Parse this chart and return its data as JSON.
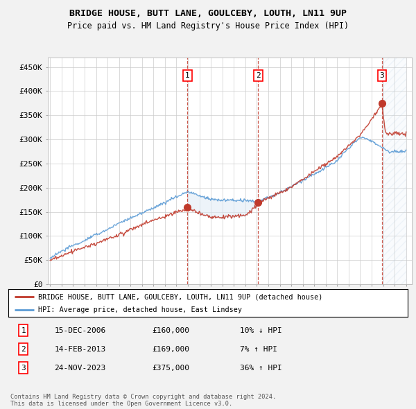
{
  "title": "BRIDGE HOUSE, BUTT LANE, GOULCEBY, LOUTH, LN11 9UP",
  "subtitle": "Price paid vs. HM Land Registry's House Price Index (HPI)",
  "ylabel_ticks": [
    "£0",
    "£50K",
    "£100K",
    "£150K",
    "£200K",
    "£250K",
    "£300K",
    "£350K",
    "£400K",
    "£450K"
  ],
  "ytick_values": [
    0,
    50000,
    100000,
    150000,
    200000,
    250000,
    300000,
    350000,
    400000,
    450000
  ],
  "ylim": [
    0,
    470000
  ],
  "xlim_start": 1994.8,
  "xlim_end": 2026.5,
  "sale_dates": [
    2006.96,
    2013.12,
    2023.9
  ],
  "sale_prices": [
    160000,
    169000,
    375000
  ],
  "sale_labels": [
    "1",
    "2",
    "3"
  ],
  "legend_entries": [
    "BRIDGE HOUSE, BUTT LANE, GOULCEBY, LOUTH, LN11 9UP (detached house)",
    "HPI: Average price, detached house, East Lindsey"
  ],
  "table_rows": [
    [
      "1",
      "15-DEC-2006",
      "£160,000",
      "10% ↓ HPI"
    ],
    [
      "2",
      "14-FEB-2013",
      "£169,000",
      "7% ↑ HPI"
    ],
    [
      "3",
      "24-NOV-2023",
      "£375,000",
      "36% ↑ HPI"
    ]
  ],
  "footnote": "Contains HM Land Registry data © Crown copyright and database right 2024.\nThis data is licensed under the Open Government Licence v3.0.",
  "hpi_line_color": "#5b9bd5",
  "price_line_color": "#c0392b",
  "sale_marker_color": "#c0392b",
  "vline_color": "#c0392b",
  "shade_color": "#dce9f5",
  "background_color": "#f2f2f2",
  "plot_bg_color": "#ffffff",
  "grid_color": "#cccccc"
}
